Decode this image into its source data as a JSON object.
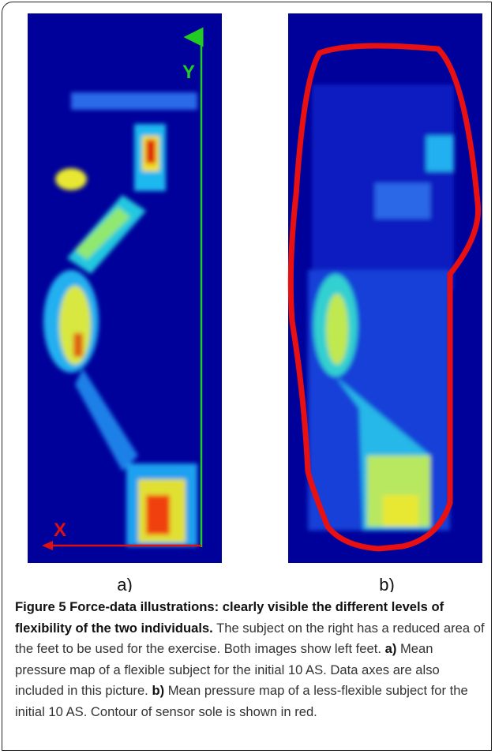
{
  "figure": {
    "panels": [
      {
        "label": "a)",
        "axis_labels": {
          "y": "Y",
          "x": "X"
        }
      },
      {
        "label": "b)"
      }
    ],
    "caption": {
      "title": "Figure 5 Force-data illustrations: clearly visible the different levels of flexibility of the two individuals.",
      "text": "The subject on the right has a reduced area of the feet to be used for the exercise. Both images show left feet.",
      "items": [
        {
          "label": "a)",
          "text": "Mean pressure map of a flexible subject for the initial 10 AS. Data axes are also included in this picture."
        },
        {
          "label": "b)",
          "text": "Mean pressure map of a less-flexible subject for the initial 10 AS. Contour of sensor sole is shown in red."
        }
      ]
    }
  }
}
